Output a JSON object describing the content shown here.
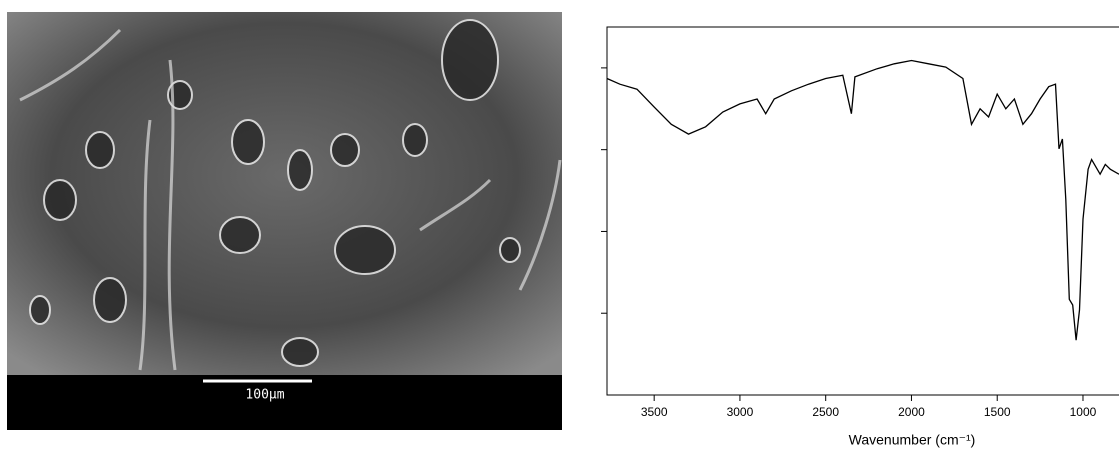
{
  "image": {
    "scale_bar_label": "100µm"
  },
  "chart_data": {
    "type": "line",
    "x_label": "Wavenumber (cm⁻¹)",
    "xlim": [
      3775,
      790
    ],
    "xticks": [
      3500,
      3000,
      2500,
      2000,
      1500,
      1000
    ],
    "ylim": [
      0,
      4.5
    ],
    "yticks": [
      1,
      2,
      3,
      4
    ],
    "series": [
      {
        "color": "#000000",
        "x": [
          3775,
          3700,
          3600,
          3500,
          3400,
          3300,
          3200,
          3100,
          3000,
          2900,
          2850,
          2800,
          2700,
          2600,
          2500,
          2400,
          2350,
          2330,
          2200,
          2100,
          2000,
          1900,
          1800,
          1700,
          1650,
          1600,
          1550,
          1500,
          1450,
          1400,
          1350,
          1300,
          1250,
          1200,
          1160,
          1140,
          1120,
          1100,
          1080,
          1060,
          1040,
          1020,
          1000,
          970,
          950,
          900,
          870,
          840,
          790
        ],
        "values": [
          3.87,
          3.8,
          3.74,
          3.52,
          3.31,
          3.19,
          3.28,
          3.46,
          3.56,
          3.62,
          3.44,
          3.62,
          3.72,
          3.8,
          3.87,
          3.91,
          3.44,
          3.89,
          3.99,
          4.05,
          4.09,
          4.05,
          4.01,
          3.87,
          3.31,
          3.5,
          3.4,
          3.68,
          3.5,
          3.62,
          3.31,
          3.44,
          3.62,
          3.77,
          3.8,
          3.01,
          3.13,
          2.39,
          1.17,
          1.1,
          0.67,
          1.04,
          2.15,
          2.76,
          2.88,
          2.7,
          2.82,
          2.76,
          2.7
        ]
      }
    ]
  }
}
